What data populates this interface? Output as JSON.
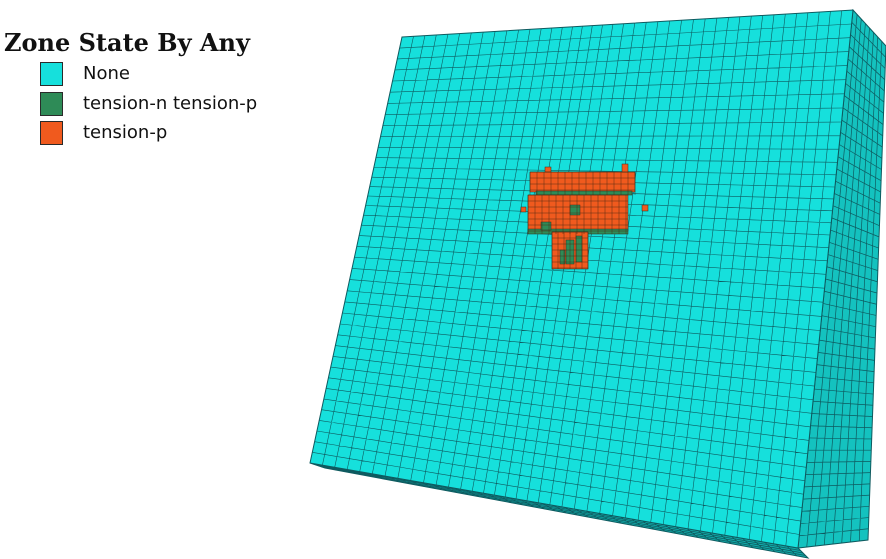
{
  "legend": {
    "title": "Zone State By Any",
    "items": [
      {
        "label": "None",
        "color": "#16e0dc"
      },
      {
        "label": "tension-n tension-p",
        "color": "#2e8b57"
      },
      {
        "label": "tension-p",
        "color": "#f05a1e"
      }
    ]
  },
  "model": {
    "base_color": "#16e0dc",
    "right_face_color": "#14c2bf",
    "bottom_face_color": "#11a8a6",
    "mesh_line_color": "#0e5a5f",
    "failure_colors": {
      "tension_n_tension_p": "#2e8b57",
      "tension_p": "#f05a1e"
    }
  }
}
